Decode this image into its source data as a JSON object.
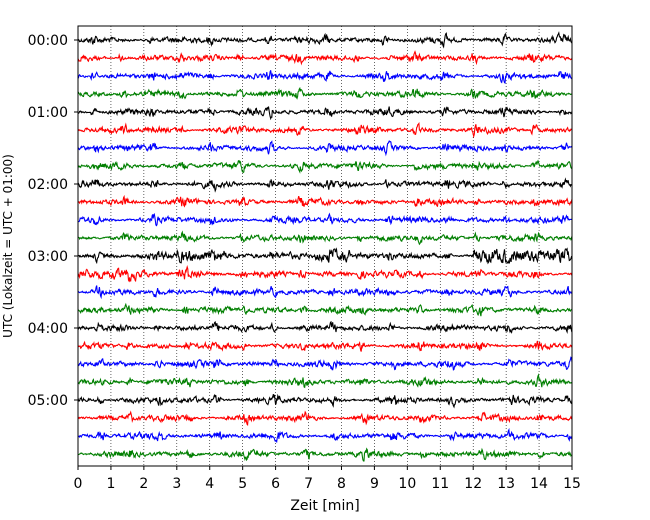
{
  "chart_data": {
    "type": "line",
    "title": "",
    "xlabel": "Zeit  [min]",
    "ylabel": "UTC (Lokalzeit = UTC + 01:00)",
    "xlim": [
      0,
      15
    ],
    "x_ticks": [
      "0",
      "1",
      "2",
      "3",
      "4",
      "5",
      "6",
      "7",
      "8",
      "9",
      "10",
      "11",
      "12",
      "13",
      "14",
      "15"
    ],
    "y_tick_labels": [
      "00:00",
      "01:00",
      "02:00",
      "03:00",
      "04:00",
      "05:00"
    ],
    "y_tick_row_index": [
      0,
      4,
      8,
      12,
      16,
      20
    ],
    "trace_start_times": [
      "00:00",
      "00:15",
      "00:30",
      "00:45",
      "01:00",
      "01:15",
      "01:30",
      "01:45",
      "02:00",
      "02:15",
      "02:30",
      "02:45",
      "03:00",
      "03:15",
      "03:30",
      "03:45",
      "04:00",
      "04:15",
      "04:30",
      "04:45",
      "05:00",
      "05:15",
      "05:30",
      "05:45"
    ],
    "trace_colors": [
      "#000000",
      "#ff0000",
      "#0000ff",
      "#007f00"
    ],
    "grid": "vertical dotted at each minute",
    "rows": 24,
    "annotations": {
      "high_activity_rows": [
        12,
        13
      ],
      "high_activity_note": "larger amplitudes near 03:00–03:15"
    }
  }
}
